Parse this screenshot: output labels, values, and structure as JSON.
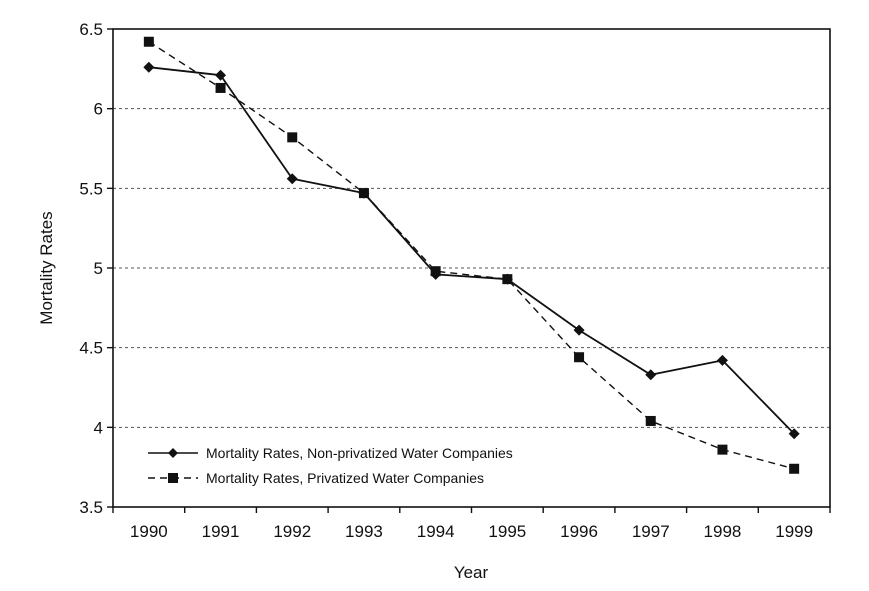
{
  "chart_data": {
    "type": "line",
    "title": "",
    "xlabel": "Year",
    "ylabel": "Mortality Rates",
    "ylim": [
      3.5,
      6.5
    ],
    "y_ticks": [
      "3.5",
      "4",
      "4.5",
      "5",
      "5.5",
      "6",
      "6.5"
    ],
    "x": [
      "1990",
      "1991",
      "1992",
      "1993",
      "1994",
      "1995",
      "1996",
      "1997",
      "1998",
      "1999"
    ],
    "grid": "horizontal dashed",
    "legend_position": "bottom-left",
    "series": [
      {
        "name": "Mortality Rates, Non-privatized Water Companies",
        "marker": "diamond",
        "line_style": "solid",
        "values": [
          6.26,
          6.21,
          5.56,
          5.47,
          4.96,
          4.93,
          4.61,
          4.33,
          4.42,
          3.96
        ]
      },
      {
        "name": "Mortality Rates, Privatized Water Companies",
        "marker": "square",
        "line_style": "dashed",
        "values": [
          6.42,
          6.13,
          5.82,
          5.47,
          4.98,
          4.93,
          4.44,
          4.04,
          3.86,
          3.74
        ]
      }
    ],
    "colors": {
      "line": "#111111",
      "grid": "#555555",
      "frame": "#111111"
    }
  }
}
